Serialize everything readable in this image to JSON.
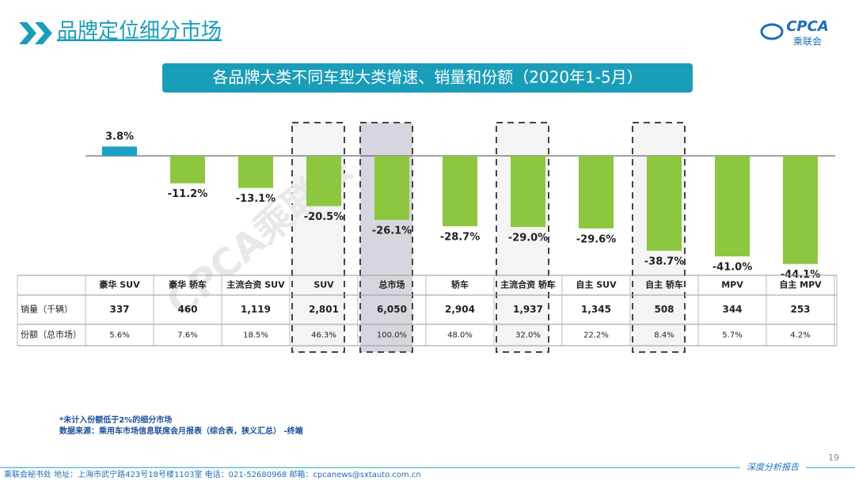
{
  "header": {
    "title": "品牌定位细分市场",
    "logo": "CPCA",
    "logo_sub": "乘联会"
  },
  "chart_data": {
    "type": "bar",
    "title": "各品牌大类不同车型大类增速、销量和份额（2020年1-5月）",
    "categories": [
      "豪华 SUV",
      "豪华 轿车",
      "主流合资 SUV",
      "SUV",
      "总市场",
      "轿车",
      "主流合资 轿车",
      "自主 SUV",
      "自主 轿车",
      "MPV",
      "自主 MPV"
    ],
    "values": [
      3.8,
      -11.2,
      -13.1,
      -20.5,
      -26.1,
      -28.7,
      -29.0,
      -29.6,
      -38.7,
      -41.0,
      -44.1
    ],
    "value_labels": [
      "3.8%",
      "-11.2%",
      "-13.1%",
      "-20.5%",
      "-26.1%",
      "-28.7%",
      "-29.0%",
      "-29.6%",
      "-38.7%",
      "-41.0%",
      "-44.1%"
    ],
    "color_positive": "#1ba1c4",
    "color_negative": "#8dc63f"
  },
  "table": {
    "rows": [
      {
        "label": "销量（千辆）",
        "cells": [
          "337",
          "460",
          "1,119",
          "2,801",
          "6,050",
          "2,904",
          "1,937",
          "1,345",
          "508",
          "344",
          "253"
        ]
      },
      {
        "label": "份额（总市场）",
        "cells": [
          "5.6%",
          "7.6%",
          "18.5%",
          "46.3%",
          "100.0%",
          "48.0%",
          "32.0%",
          "22.2%",
          "8.4%",
          "5.7%",
          "4.2%"
        ]
      }
    ]
  },
  "watermark": "CPCA乘联会",
  "notes": [
    "*未计入份额低于2%的细分市场",
    "数据来源：乘用车市场信息联席会月报表（综合表，狭义汇总）  -终端"
  ],
  "footer": {
    "address": "乘联会秘书处   地址：上海市武宁路423号18号楼1103室   电话：021-52680968   邮箱：cpcanews@sxtauto.com.cn",
    "page": "19",
    "report": "深度分析报告"
  }
}
